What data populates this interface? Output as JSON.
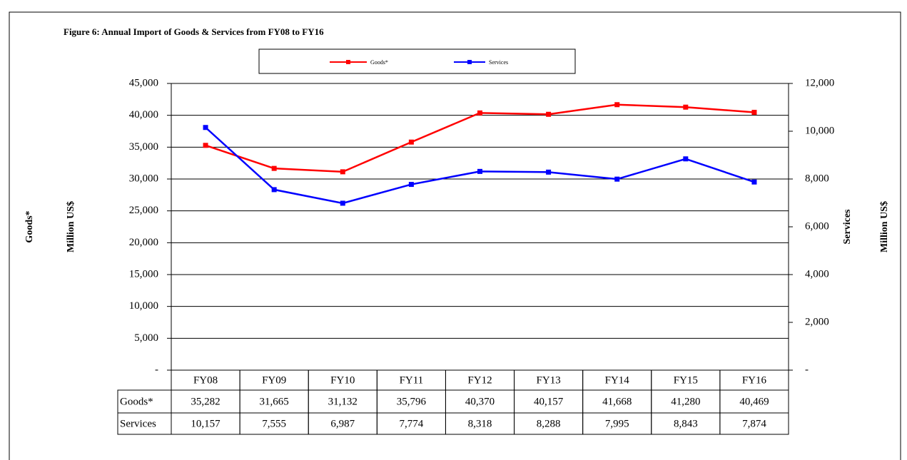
{
  "chart_data": {
    "type": "line",
    "title": "Figure 6: Annual Import of Goods & Services from  FY08 to FY16",
    "ylabel": [
      "Goods*",
      "Million US$"
    ],
    "y2label": [
      "Services",
      "Million US$"
    ],
    "categories": [
      "FY08",
      "FY09",
      "FY10",
      "FY11",
      "FY12",
      "FY13",
      "FY14",
      "FY15",
      "FY16"
    ],
    "series": [
      {
        "name": "Goods*",
        "color": "#ff0000",
        "values": [
          35282,
          31665,
          31132,
          35796,
          40370,
          40157,
          41668,
          41280,
          40469
        ],
        "value_labels": [
          "35,282",
          "31,665",
          "31,132",
          "35,796",
          "40,370",
          "40,157",
          "41,668",
          "41,280",
          "40,469"
        ]
      },
      {
        "name": "Services",
        "color": "#0000ff",
        "axis": "y2",
        "values": [
          10157,
          7555,
          6987,
          7774,
          8318,
          8288,
          7995,
          8843,
          7874
        ],
        "value_labels": [
          "10,157",
          "7,555",
          "6,987",
          "7,774",
          "8,318",
          "8,288",
          "7,995",
          "8,843",
          "7,874"
        ]
      }
    ],
    "ylim": [
      0,
      45000
    ],
    "yticks": [
      {
        "value": 0,
        "label": "-"
      },
      {
        "value": 5000,
        "label": "5,000"
      },
      {
        "value": 10000,
        "label": "10,000"
      },
      {
        "value": 15000,
        "label": "15,000"
      },
      {
        "value": 20000,
        "label": "20,000"
      },
      {
        "value": 25000,
        "label": "25,000"
      },
      {
        "value": 30000,
        "label": "30,000"
      },
      {
        "value": 35000,
        "label": "35,000"
      },
      {
        "value": 40000,
        "label": "40,000"
      },
      {
        "value": 45000,
        "label": "45,000"
      }
    ],
    "y2lim": [
      0,
      12000
    ],
    "y2ticks": [
      {
        "value": 0,
        "label": "-"
      },
      {
        "value": 2000,
        "label": "2,000"
      },
      {
        "value": 4000,
        "label": "4,000"
      },
      {
        "value": 6000,
        "label": "6,000"
      },
      {
        "value": 8000,
        "label": "8,000"
      },
      {
        "value": 10000,
        "label": "10,000"
      },
      {
        "value": 12000,
        "label": "12,000"
      }
    ],
    "grid": true,
    "legend": "top"
  }
}
